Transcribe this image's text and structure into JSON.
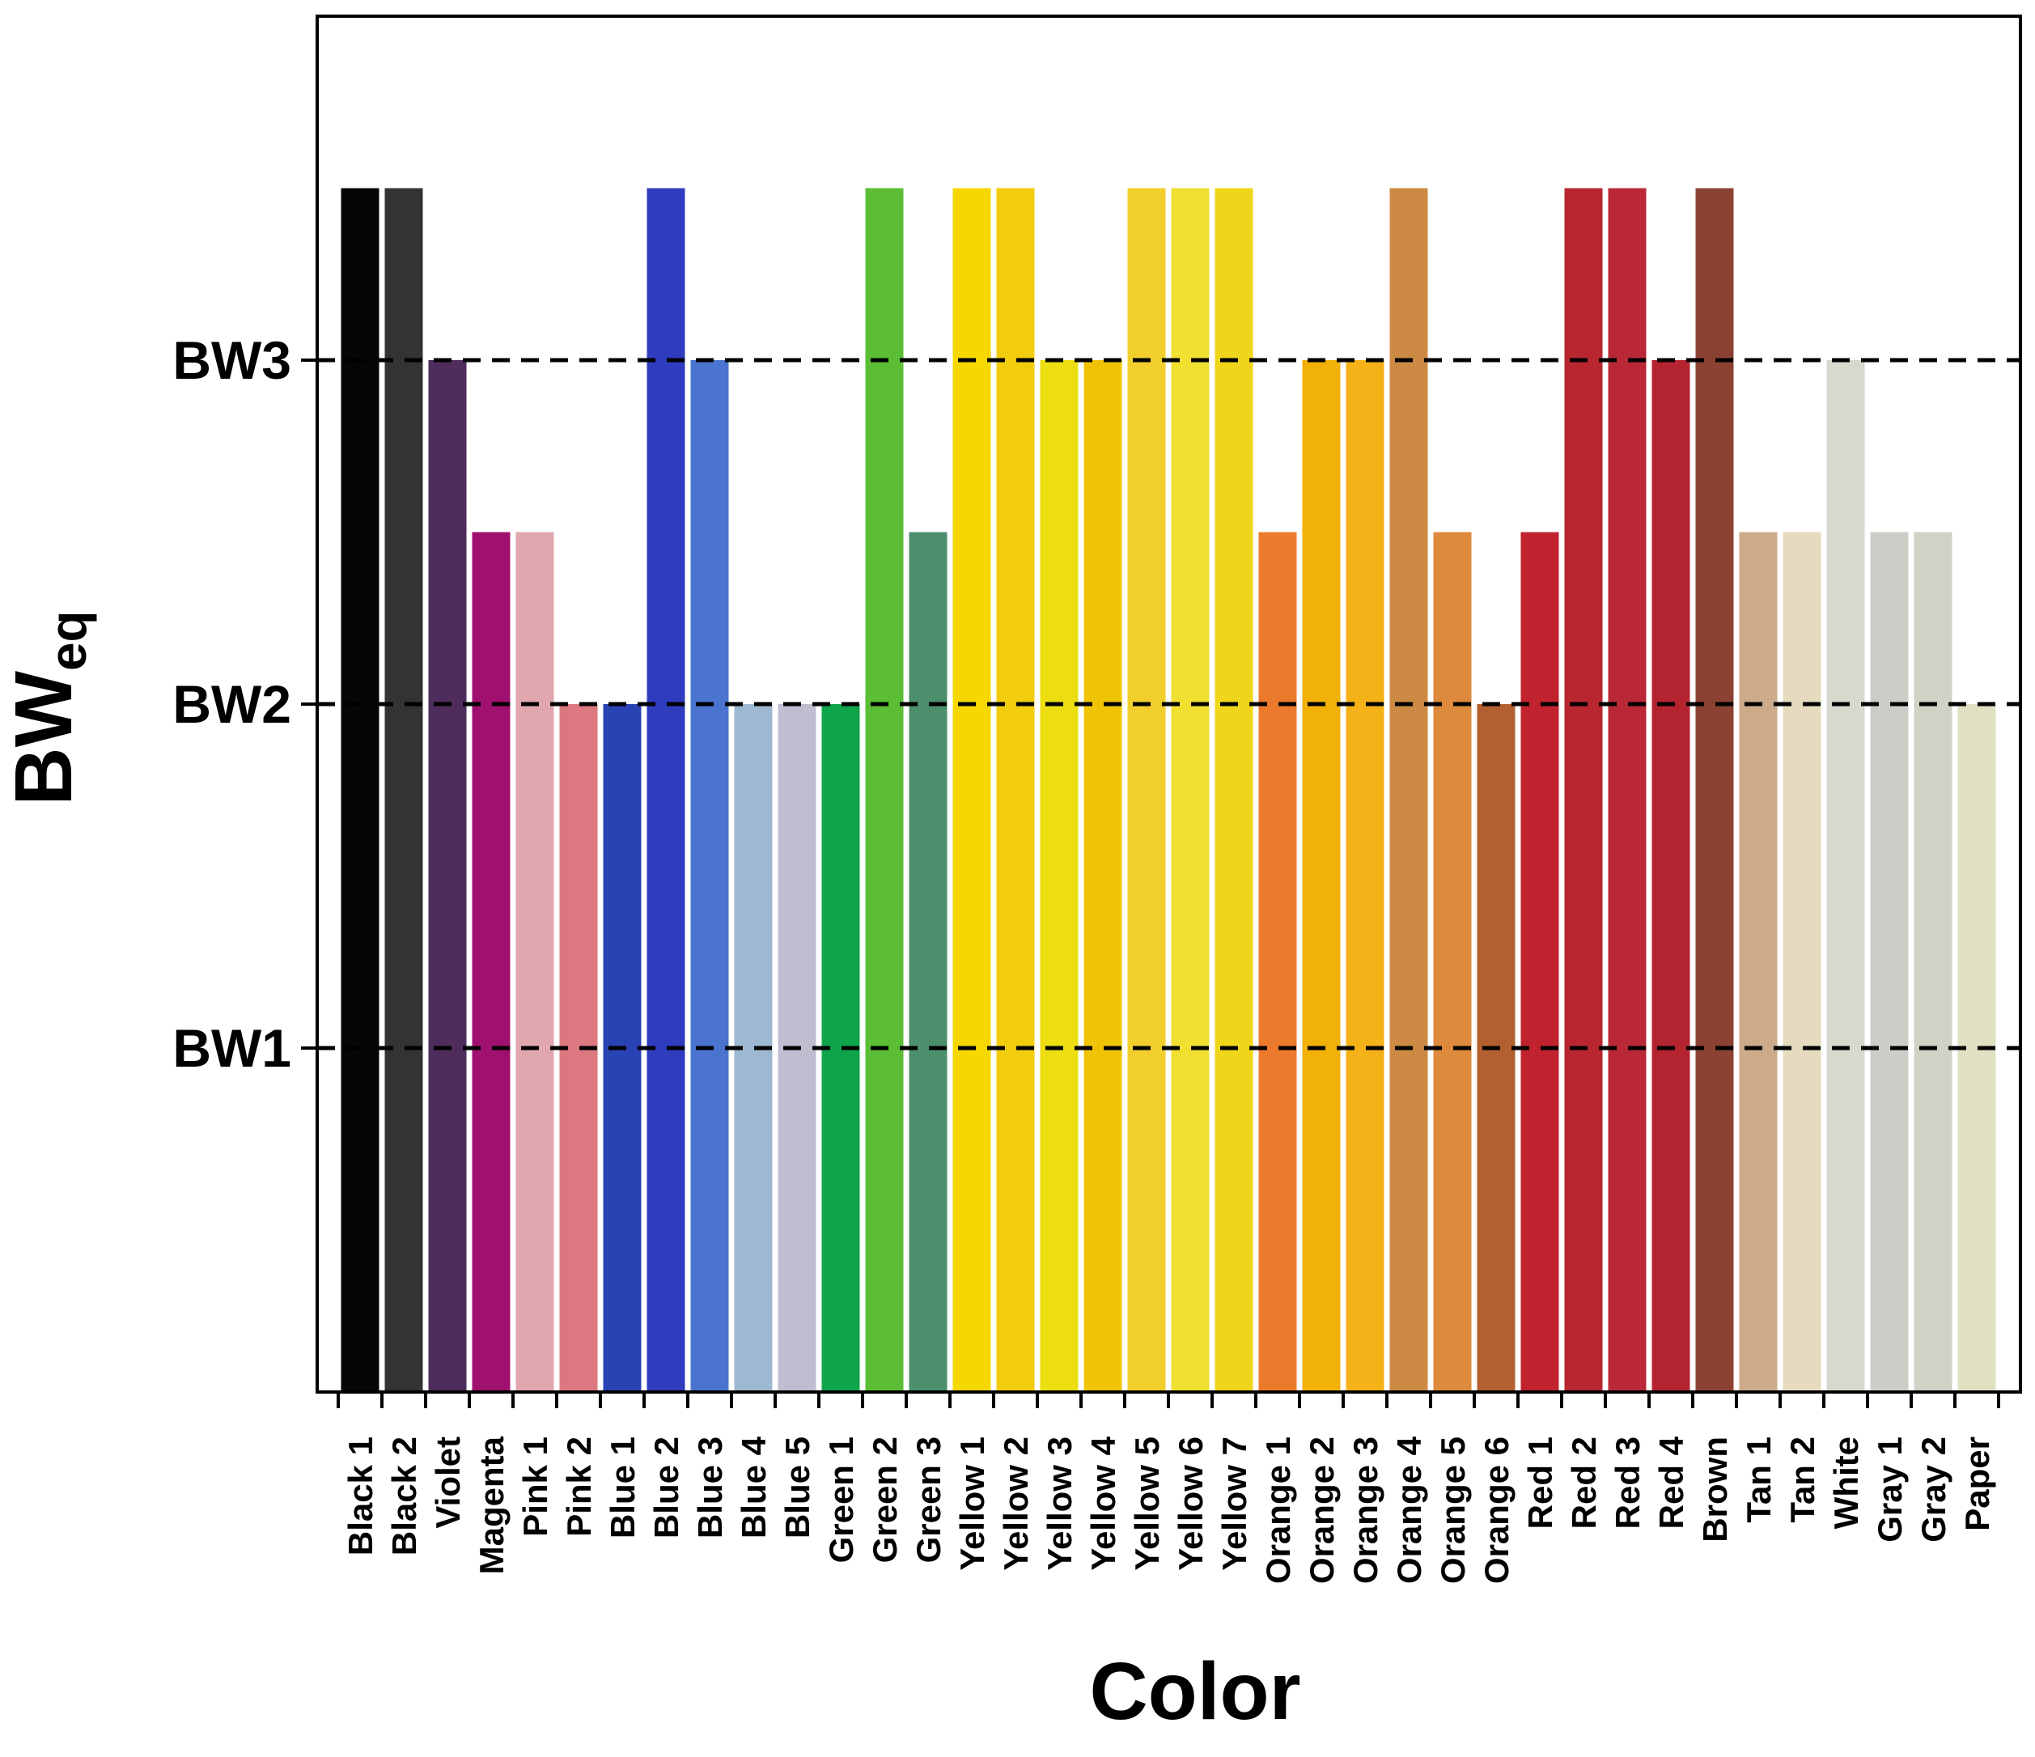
{
  "chart_data": {
    "type": "bar",
    "title": "",
    "xlabel": "Color",
    "ylabel": {
      "main": "BW",
      "subscript": "eq"
    },
    "ylim": [
      0,
      4
    ],
    "yticks": [
      {
        "value": 1,
        "label": "BW1"
      },
      {
        "value": 2,
        "label": "BW2"
      },
      {
        "value": 3,
        "label": "BW3"
      }
    ],
    "reference_lines": [
      1,
      2,
      3
    ],
    "grid": false,
    "legend": "none",
    "categories": [
      "Black 1",
      "Black 2",
      "Violet",
      "Magenta",
      "Pink 1",
      "Pink 2",
      "Blue 1",
      "Blue 2",
      "Blue 3",
      "Blue 4",
      "Blue 5",
      "Green 1",
      "Green 2",
      "Green 3",
      "Yellow 1",
      "Yellow 2",
      "Yellow 3",
      "Yellow 4",
      "Yellow 5",
      "Yellow 6",
      "Yellow 7",
      "Orange 1",
      "Orange 2",
      "Orange 3",
      "Orange 4",
      "Orange 5",
      "Orange 6",
      "Red 1",
      "Red 2",
      "Red 3",
      "Red 4",
      "Brown",
      "Tan 1",
      "Tan 2",
      "White",
      "Gray 1",
      "Gray 2",
      "Paper"
    ],
    "values": [
      3.5,
      3.5,
      3,
      2.5,
      2.5,
      2,
      2,
      3.5,
      3,
      2,
      2,
      2,
      3.5,
      2.5,
      3.5,
      3.5,
      3,
      3,
      3.5,
      3.5,
      3.5,
      2.5,
      3,
      3,
      3.5,
      2.5,
      2,
      2.5,
      3.5,
      3.5,
      3,
      3.5,
      2.5,
      2.5,
      3,
      2.5,
      2.5,
      2
    ],
    "colors": [
      "#050505",
      "#333333",
      "#4e2d5c",
      "#a0106e",
      "#e0a8ae",
      "#db7880",
      "#2a43b4",
      "#2f3cbe",
      "#4a74d0",
      "#9fb8d2",
      "#c0bdd0",
      "#0ea44a",
      "#5bbe35",
      "#4c8f6c",
      "#f6d800",
      "#f2cd0e",
      "#ecde10",
      "#f0c406",
      "#f2cf2c",
      "#f0e030",
      "#f0d61a",
      "#ec7a2c",
      "#f1b106",
      "#f5b218",
      "#cc8a44",
      "#dd8a3c",
      "#b36030",
      "#c0232e",
      "#ba2630",
      "#ba2838",
      "#b42430",
      "#8c4232",
      "#cdab8a",
      "#e6dbbf",
      "#d8d8ce",
      "#cdcdc8",
      "#d1d1c6",
      "#e0e0c3"
    ]
  }
}
